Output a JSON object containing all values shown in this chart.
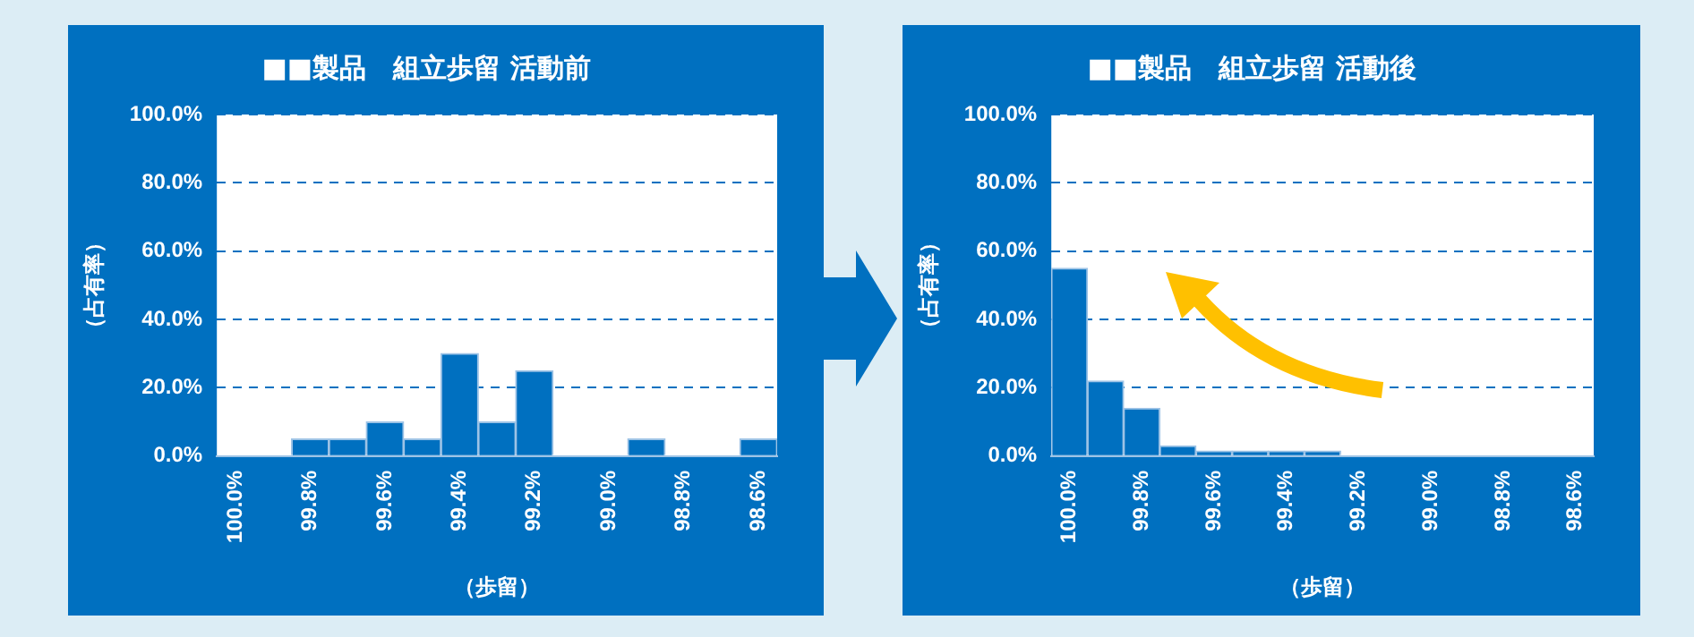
{
  "chart_data": [
    {
      "type": "bar",
      "title": "■■製品　組立歩留 活動前",
      "xlabel": "（歩留）",
      "ylabel": "（占有率）",
      "categories": [
        "100.0%",
        null,
        "99.8%",
        null,
        "99.6%",
        null,
        "99.4%",
        null,
        "99.2%",
        null,
        "99.0%",
        null,
        "98.8%",
        null,
        "98.6%"
      ],
      "values": [
        0,
        0,
        5,
        5,
        10,
        5,
        30,
        10,
        25,
        0,
        0,
        5,
        0,
        0,
        5
      ],
      "color": "#0070c0",
      "ylim": [
        0,
        100
      ],
      "yticks": [
        {
          "value": 0,
          "label": "0.0%"
        },
        {
          "value": 20,
          "label": "20.0%"
        },
        {
          "value": 40,
          "label": "40.0%"
        },
        {
          "value": 60,
          "label": "60.0%"
        },
        {
          "value": 80,
          "label": "80.0%"
        },
        {
          "value": 100,
          "label": "100.0%"
        }
      ],
      "grid": "y"
    },
    {
      "type": "bar",
      "title": "■■製品　組立歩留 活動後",
      "xlabel": "（歩留）",
      "ylabel": "（占有率）",
      "categories": [
        "100.0%",
        null,
        "99.8%",
        null,
        "99.6%",
        null,
        "99.4%",
        null,
        "99.2%",
        null,
        "99.0%",
        null,
        "98.8%",
        null,
        "98.6%"
      ],
      "values": [
        55,
        22,
        14,
        3,
        1.5,
        1.5,
        1.5,
        1.5,
        0,
        0,
        0,
        0,
        0,
        0,
        0
      ],
      "color": "#0070c0",
      "ylim": [
        0,
        100
      ],
      "yticks": [
        {
          "value": 0,
          "label": "0.0%"
        },
        {
          "value": 20,
          "label": "20.0%"
        },
        {
          "value": 40,
          "label": "40.0%"
        },
        {
          "value": 60,
          "label": "60.0%"
        },
        {
          "value": 80,
          "label": "80.0%"
        },
        {
          "value": 100,
          "label": "100.0%"
        }
      ],
      "grid": "y"
    }
  ]
}
